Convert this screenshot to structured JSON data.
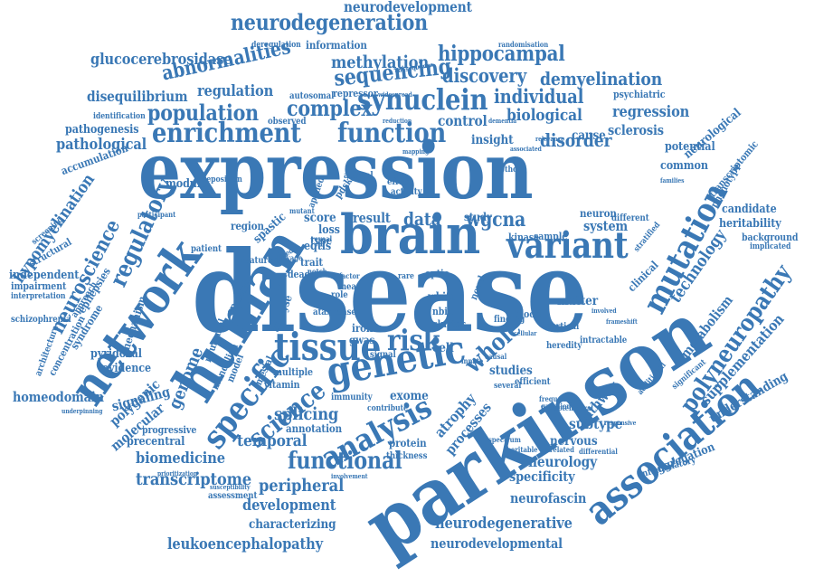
{
  "colors": {
    "word": "#3a78b5",
    "background": "#ffffff"
  },
  "words": [
    "disease",
    "parkinson",
    "expression",
    "human",
    "brain",
    "network",
    "genetic",
    "tissue",
    "association",
    "analysis",
    "function",
    "enrichment",
    "specific",
    "variant",
    "mutation",
    "risk",
    "synuclein",
    "neurodegeneration",
    "polyneuropathy",
    "science",
    "whole",
    "functional",
    "neuroscience",
    "population",
    "complex",
    "sequencing",
    "regulatory",
    "data",
    "result",
    "wgcna",
    "individual",
    "discovery",
    "methylation",
    "hippocampal",
    "abnormalities",
    "glucocerebrosidase",
    "neurodevelopment",
    "demyelination",
    "regulation",
    "disequilibrium",
    "biological",
    "disorder",
    "control",
    "insight",
    "regression",
    "sclerosis",
    "pathological",
    "pathogenesis",
    "accumulation",
    "hypomyelination",
    "genome",
    "technology",
    "metabolism",
    "supplementation",
    "understanding",
    "aggregation",
    "neurodegenerative",
    "neurodevelopmental",
    "leukoencephalopathy",
    "characterizing",
    "development",
    "peripheral",
    "transcriptome",
    "biomedicine",
    "precentral",
    "temporal",
    "splicing",
    "atrophy",
    "processes",
    "studies",
    "neurology",
    "specificity",
    "subtype",
    "nervous",
    "pathway",
    "neurofascin",
    "homeodomain",
    "polygenic",
    "molecular",
    "signaling",
    "evidence",
    "pyridoxal",
    "syndrome",
    "epilepsies",
    "mechanism",
    "independent",
    "impairment",
    "structural",
    "schizophrenia",
    "interpretation",
    "concentration",
    "architecture",
    "potential",
    "neurological",
    "common",
    "transcriptomic",
    "phenotype",
    "candidate",
    "heritability",
    "background",
    "implicated",
    "psychiatric",
    "identification",
    "system",
    "cause",
    "study",
    "neuron",
    "score",
    "loss",
    "eqtls",
    "trait",
    "type",
    "iron",
    "gwas",
    "cluster",
    "nbia",
    "exome",
    "immunity",
    "protein",
    "signal",
    "thickness",
    "annotation",
    "matter",
    "intractable",
    "heredity",
    "cortical",
    "blood",
    "ataxia",
    "case",
    "module",
    "region",
    "spanish",
    "mesial",
    "vitamin",
    "multiple",
    "analyse",
    "mendelian",
    "model",
    "neuromel",
    "information",
    "deregulation",
    "randomisation",
    "repressor",
    "autosomal",
    "observed",
    "reduction",
    "dementia",
    "progressive",
    "prioritization",
    "assessment",
    "susceptibility",
    "underpinning",
    "frontotemporal",
    "involvement",
    "clinical",
    "stratified",
    "inflammatory",
    "significant",
    "additional",
    "cell",
    "different",
    "responsive",
    "ganglion",
    "frequency",
    "efficient",
    "several",
    "contribute",
    "involved",
    "frameshift",
    "mean",
    "role",
    "dead",
    "feature",
    "patient",
    "screening",
    "approach",
    "reveal",
    "participant",
    "mutant",
    "spastic",
    "applied",
    "animal",
    "deposition",
    "kinase",
    "sample",
    "effect",
    "activity",
    "pdsk",
    "optic",
    "rare",
    "white",
    "novel",
    "finding",
    "notch",
    "factor",
    "related",
    "linkage",
    "widespread",
    "consequence",
    "families",
    "relevance",
    "associated",
    "method",
    "mapping",
    "heritable",
    "unrelated",
    "differential",
    "spectrum",
    "causal",
    "innate",
    "cellular"
  ]
}
